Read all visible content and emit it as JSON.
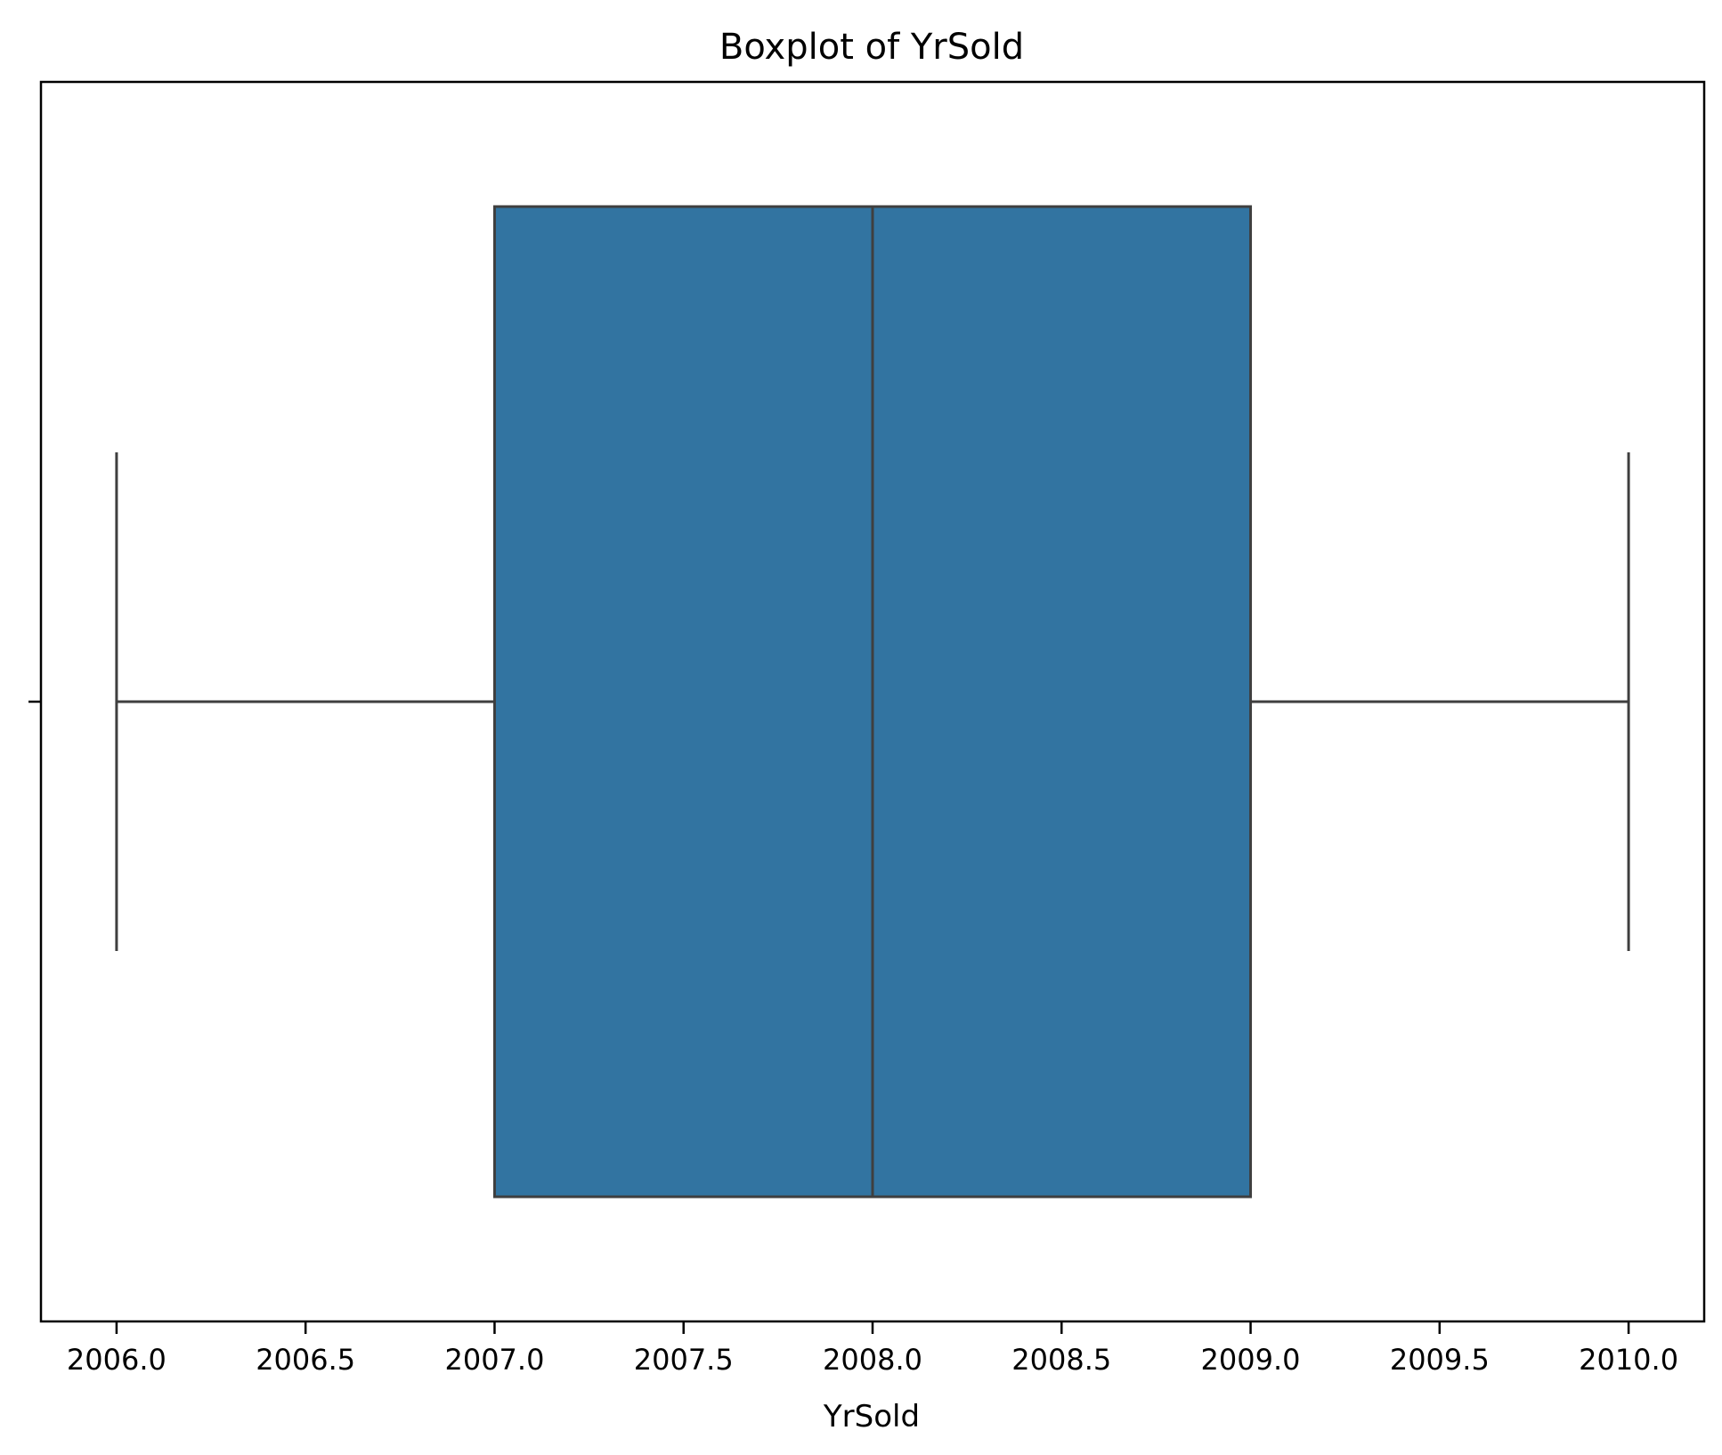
{
  "chart_data": {
    "type": "box",
    "title": "Boxplot of YrSold",
    "xlabel": "YrSold",
    "ylabel": "",
    "orientation": "horizontal",
    "xlim": [
      2005.8,
      2010.2
    ],
    "xticks": [
      2006.0,
      2006.5,
      2007.0,
      2007.5,
      2008.0,
      2008.5,
      2009.0,
      2009.5,
      2010.0
    ],
    "xtick_labels": [
      "2006.0",
      "2006.5",
      "2007.0",
      "2007.5",
      "2008.0",
      "2008.5",
      "2009.0",
      "2009.5",
      "2010.0"
    ],
    "grid": false,
    "series": [
      {
        "whisker_low": 2006,
        "q1": 2007,
        "median": 2008,
        "q3": 2009,
        "whisker_high": 2010
      }
    ],
    "colors": {
      "box_fill": "#3274a1",
      "line": "#3f3f3f",
      "frame": "#000000"
    }
  }
}
